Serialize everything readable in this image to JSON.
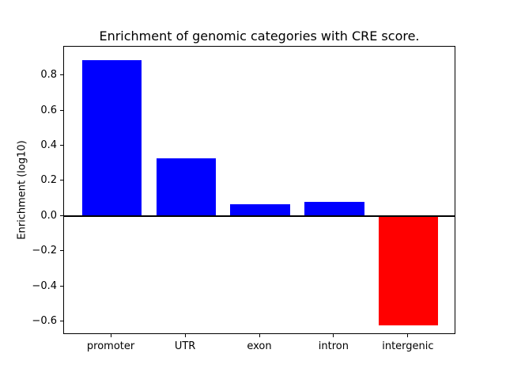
{
  "figure": {
    "background": "#ffffff",
    "text_color": "#000000",
    "axis_color": "#000000"
  },
  "chart_data": {
    "type": "bar",
    "title": "Enrichment of genomic categories with CRE score.",
    "ylabel": "Enrichment (log10)",
    "xlabel": "",
    "categories": [
      "promoter",
      "UTR",
      "exon",
      "intron",
      "intergenic"
    ],
    "values": [
      0.89,
      0.33,
      0.07,
      0.08,
      -0.62
    ],
    "bar_colors": [
      "#0000ff",
      "#0000ff",
      "#0000ff",
      "#0000ff",
      "#ff0000"
    ],
    "positive_color": "#0000ff",
    "negative_color": "#ff0000",
    "yticks": [
      0.8,
      0.6,
      0.4,
      0.2,
      0.0,
      -0.2,
      -0.4,
      -0.6
    ],
    "ytick_labels": [
      "0.8",
      "0.6",
      "0.4",
      "0.2",
      "0.0",
      "−0.2",
      "−0.4",
      "−0.6"
    ],
    "ylim": [
      -0.675,
      0.965
    ],
    "xlim": [
      -0.64,
      4.64
    ],
    "bar_width": 0.8,
    "zero_line": true,
    "zero_line_color": "#000000",
    "grid": false,
    "legend_position": null
  }
}
